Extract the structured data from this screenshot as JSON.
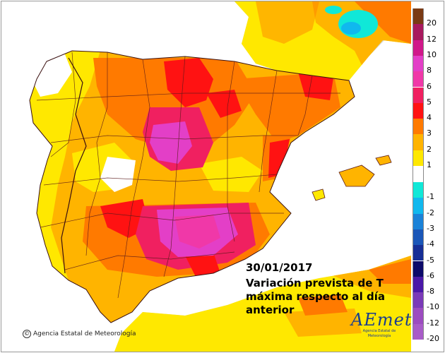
{
  "date": "30/01/2017",
  "title": "Variación prevista de T máxima respecto al día anterior",
  "credit": "Agencia Estatal de Meteorología",
  "logo": {
    "mark": "AEmet",
    "sub": "Agencia Estatal de Meteorología"
  },
  "legend": {
    "positive": [
      {
        "label": "20",
        "color": "#7a3a14"
      },
      {
        "label": "12",
        "color": "#a8195e"
      },
      {
        "label": "10",
        "color": "#d0188a"
      },
      {
        "label": "8",
        "color": "#e33fc7"
      },
      {
        "label": "6",
        "color": "#f038a8"
      },
      {
        "label": "5",
        "color": "#f02060"
      },
      {
        "label": "4",
        "color": "#ff1212"
      },
      {
        "label": "3",
        "color": "#ff7a00"
      },
      {
        "label": "2",
        "color": "#ffb400"
      },
      {
        "label": "1",
        "color": "#ffe800"
      }
    ],
    "negative": [
      {
        "label": "-1",
        "color": "#10e8d8"
      },
      {
        "label": "-2",
        "color": "#10b8ee"
      },
      {
        "label": "-3",
        "color": "#1a82d8"
      },
      {
        "label": "-4",
        "color": "#1a56b8"
      },
      {
        "label": "-5",
        "color": "#162e96"
      },
      {
        "label": "-6",
        "color": "#0c0a6a"
      },
      {
        "label": "-8",
        "color": "#4a18a8"
      },
      {
        "label": "-10",
        "color": "#7a3ab8"
      },
      {
        "label": "-12",
        "color": "#9c4cc0"
      },
      {
        "label": "-20",
        "color": "#a85cc8"
      }
    ]
  },
  "colors": {
    "sea": "#ffffff",
    "land_outside": "#d4d4d4",
    "neutral": "#ffffff",
    "borders": "#5a1a1a"
  }
}
